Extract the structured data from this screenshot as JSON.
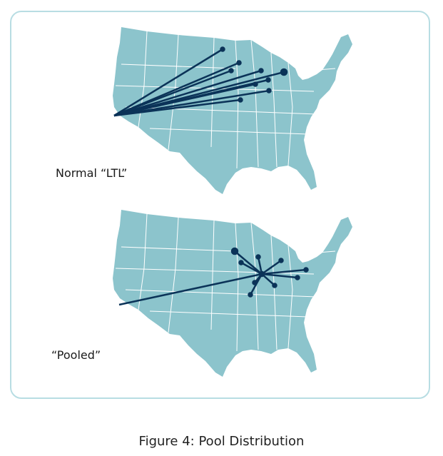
{
  "diagram": {
    "top_label": "Normal “LTL”",
    "bottom_label": "“Pooled”",
    "caption": "Figure 4:  Pool Distribution"
  },
  "colors": {
    "map_fill": "#8cc4cc",
    "state_borders": "#ffffff",
    "route_lines": "#0b3358",
    "panel_border": "#b8dde3"
  }
}
